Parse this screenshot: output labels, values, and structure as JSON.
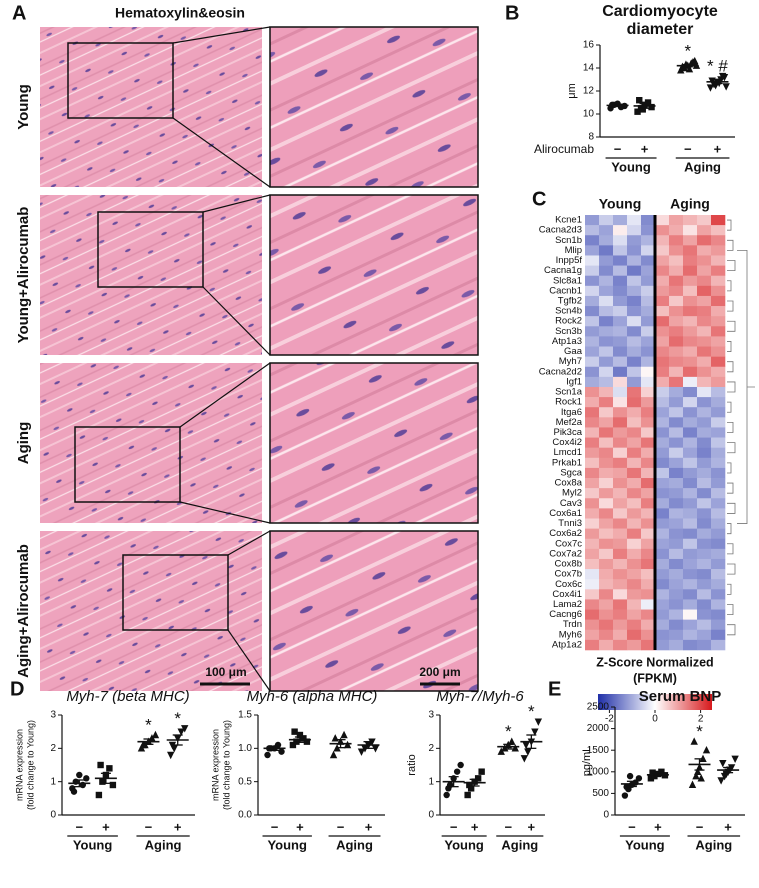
{
  "panel_labels": [
    "A",
    "B",
    "C",
    "D",
    "E"
  ],
  "histology": {
    "title": "Hematoxylin&eosin",
    "rows": [
      "Young",
      "Young+Alirocumab",
      "Aging",
      "Aging+Alirocumab"
    ],
    "scale_bars": [
      "100 μm",
      "200 μm"
    ]
  },
  "chart_data": [
    {
      "type": "dot",
      "title": [
        "Cardiomyocyte",
        "diameter"
      ],
      "ylabel": [
        "μm"
      ],
      "ylim": [
        8,
        16
      ],
      "yticks": [
        8,
        10,
        12,
        14,
        16
      ],
      "factor_label": "Alirocumab",
      "categories": [
        "−",
        "+",
        "−",
        "+"
      ],
      "groups": [
        "Young",
        "Aging"
      ],
      "points": [
        [
          10.5,
          10.8,
          10.9,
          10.6,
          10.7,
          10.8
        ],
        [
          10.2,
          10.5,
          10.8,
          11.0,
          10.6,
          11.2,
          10.4
        ],
        [
          13.8,
          14.0,
          14.2,
          14.4,
          14.6,
          14.1,
          14.3,
          13.9,
          14.5,
          14.2
        ],
        [
          12.3,
          12.6,
          12.8,
          13.0,
          13.2,
          12.9,
          12.5,
          12.7,
          13.3,
          12.4
        ]
      ],
      "means": [
        10.75,
        10.7,
        14.2,
        12.8
      ],
      "errors": [
        0.1,
        0.2,
        0.1,
        0.15
      ],
      "significance": [
        null,
        null,
        "*",
        "* #"
      ]
    },
    {
      "type": "heatmap",
      "groups": [
        "Young",
        "Aging"
      ],
      "rows": [
        "Kcne1",
        "Cacna2d3",
        "Scn1b",
        "Mlip",
        "Inpp5f",
        "Cacna1g",
        "Slc8a1",
        "Cacnb1",
        "Tgfb2",
        "Scn4b",
        "Rock2",
        "Scn3b",
        "Atp1a3",
        "Gaa",
        "Myh7",
        "Cacna2d2",
        "Igf1",
        "Scn1a",
        "Rock1",
        "Itga6",
        "Mef2a",
        "Pik3ca",
        "Cox4i2",
        "Lmcd1",
        "Prkab1",
        "Sgca",
        "Cox8a",
        "Myl2",
        "Cav3",
        "Cox6a1",
        "Tnni3",
        "Cox6a2",
        "Cox7c",
        "Cox7a2",
        "Cox8b",
        "Cox7b",
        "Cox6c",
        "Cox4i1",
        "Lama2",
        "Cacng6",
        "Trdn",
        "Myh6",
        "Atp1a2"
      ],
      "values": [
        [
          -1.2,
          -0.6,
          -1.0,
          -0.3,
          -1.4,
          0.4,
          1.0,
          0.8,
          0.6,
          2.0
        ],
        [
          -0.8,
          -1.1,
          0.2,
          -0.5,
          -1.3,
          1.2,
          0.9,
          0.3,
          1.0,
          0.7
        ],
        [
          -1.5,
          -1.0,
          -0.4,
          -1.2,
          -0.9,
          0.8,
          1.4,
          1.0,
          1.6,
          1.3
        ],
        [
          -1.1,
          -1.6,
          -0.7,
          -1.3,
          -0.5,
          0.6,
          1.2,
          1.5,
          0.9,
          1.1
        ],
        [
          -0.3,
          -1.2,
          -1.5,
          -0.9,
          -1.4,
          1.0,
          0.7,
          1.4,
          1.2,
          0.8
        ],
        [
          -0.6,
          -1.4,
          -0.8,
          -1.6,
          -1.1,
          1.3,
          0.9,
          1.6,
          1.0,
          1.4
        ],
        [
          -1.3,
          -0.9,
          -1.5,
          -0.7,
          -1.2,
          0.9,
          1.5,
          1.1,
          1.3,
          0.8
        ],
        [
          -0.5,
          -1.1,
          -1.4,
          -1.0,
          -0.6,
          1.1,
          1.3,
          0.7,
          1.7,
          1.2
        ],
        [
          -1.0,
          -0.4,
          -1.2,
          -1.5,
          -0.8,
          1.4,
          0.6,
          1.2,
          1.0,
          1.6
        ],
        [
          -1.4,
          -0.8,
          -0.6,
          -1.3,
          -1.0,
          0.7,
          1.2,
          1.5,
          1.4,
          0.9
        ],
        [
          -0.7,
          -1.5,
          -1.1,
          -0.4,
          -1.2,
          1.6,
          1.0,
          0.8,
          1.3,
          1.1
        ],
        [
          -1.2,
          -1.0,
          -0.9,
          -1.4,
          -0.6,
          1.2,
          1.4,
          1.1,
          0.8,
          1.5
        ],
        [
          -0.9,
          -1.3,
          -1.2,
          -0.8,
          -1.1,
          1.0,
          1.6,
          1.3,
          1.2,
          1.0
        ],
        [
          -1.1,
          -0.7,
          -1.4,
          -1.0,
          -1.3,
          1.3,
          1.1,
          0.9,
          1.5,
          1.2
        ],
        [
          -0.6,
          -1.2,
          -0.8,
          -1.5,
          -0.9,
          1.5,
          1.3,
          1.2,
          0.9,
          1.7
        ],
        [
          -1.3,
          -0.5,
          -1.6,
          -0.7,
          0.1,
          1.4,
          0.8,
          1.6,
          1.2,
          0.9
        ],
        [
          -1.0,
          -0.8,
          0.4,
          -1.2,
          -0.3,
          0.9,
          1.5,
          -0.2,
          0.8,
          1.1
        ],
        [
          1.2,
          0.8,
          -0.4,
          1.5,
          0.5,
          -0.6,
          -1.0,
          -1.4,
          -0.3,
          -0.8
        ],
        [
          0.9,
          1.4,
          0.3,
          1.6,
          1.1,
          -0.8,
          -1.2,
          -0.5,
          -1.3,
          -1.0
        ],
        [
          1.5,
          0.6,
          1.2,
          0.9,
          1.4,
          -1.1,
          -0.7,
          -1.3,
          -0.9,
          -1.2
        ],
        [
          1.3,
          1.0,
          1.6,
          0.7,
          1.2,
          -0.9,
          -1.4,
          -1.0,
          -1.2,
          -0.6
        ],
        [
          0.8,
          1.5,
          1.1,
          1.3,
          0.6,
          -1.3,
          -0.8,
          -1.5,
          -1.0,
          -1.1
        ],
        [
          1.4,
          0.7,
          1.3,
          1.0,
          1.5,
          -1.0,
          -1.3,
          -0.9,
          -1.4,
          -0.7
        ],
        [
          1.1,
          1.3,
          0.5,
          1.4,
          0.9,
          -1.2,
          -0.6,
          -1.1,
          -1.5,
          -1.0
        ],
        [
          0.7,
          1.2,
          1.4,
          0.8,
          1.3,
          -1.4,
          -1.1,
          -0.7,
          -1.2,
          -0.9
        ],
        [
          1.3,
          0.9,
          1.0,
          1.5,
          0.8,
          -0.7,
          -1.5,
          -1.2,
          -1.0,
          -1.3
        ],
        [
          1.0,
          0.5,
          1.2,
          0.9,
          1.6,
          -1.1,
          -1.0,
          -1.4,
          -0.8,
          -1.2
        ],
        [
          0.6,
          1.1,
          0.8,
          1.3,
          1.0,
          -1.3,
          -1.2,
          -0.9,
          -1.4,
          -0.8
        ],
        [
          1.2,
          0.4,
          1.0,
          0.7,
          1.4,
          -1.0,
          -1.4,
          -1.2,
          -0.7,
          -1.1
        ],
        [
          0.9,
          1.3,
          0.6,
          1.1,
          0.8,
          -1.5,
          -0.9,
          -1.0,
          -1.3,
          -0.8
        ],
        [
          0.5,
          1.0,
          1.3,
          0.8,
          1.2,
          -1.2,
          -1.1,
          -0.8,
          -1.4,
          -1.0
        ],
        [
          1.1,
          0.7,
          0.9,
          1.4,
          0.6,
          -0.9,
          -1.3,
          -1.4,
          -1.0,
          -1.2
        ],
        [
          0.8,
          1.2,
          1.1,
          0.5,
          1.0,
          -1.1,
          -1.2,
          -0.7,
          -1.3,
          -1.4
        ],
        [
          1.0,
          0.6,
          1.4,
          0.9,
          1.3,
          -1.3,
          -0.8,
          -1.2,
          -1.1,
          -1.0
        ],
        [
          0.7,
          1.1,
          0.8,
          1.2,
          1.5,
          -1.0,
          -1.4,
          -1.1,
          -0.9,
          -1.2
        ],
        [
          -0.3,
          0.9,
          1.2,
          1.0,
          0.7,
          -1.2,
          -1.0,
          -1.3,
          -1.4,
          -0.8
        ],
        [
          -0.2,
          0.8,
          1.0,
          1.3,
          0.9,
          -1.4,
          -1.1,
          -0.9,
          -1.2,
          -1.0
        ],
        [
          0.6,
          1.3,
          0.4,
          1.1,
          1.2,
          -0.9,
          -1.2,
          -1.4,
          -0.8,
          -1.3
        ],
        [
          1.3,
          1.0,
          1.5,
          0.8,
          -0.2,
          -1.1,
          -1.3,
          -1.0,
          -1.4,
          -0.9
        ],
        [
          1.6,
          1.2,
          1.4,
          1.0,
          1.3,
          -1.2,
          -0.9,
          0.1,
          -1.3,
          -1.4
        ],
        [
          1.2,
          1.5,
          1.1,
          1.4,
          0.9,
          -1.0,
          -1.4,
          -1.1,
          -0.8,
          -1.2
        ],
        [
          1.0,
          1.3,
          0.9,
          1.6,
          1.2,
          -1.3,
          -1.2,
          -0.9,
          -1.1,
          -1.5
        ],
        [
          1.4,
          0.9,
          1.3,
          1.1,
          1.5,
          -1.2,
          -1.0,
          -1.4,
          -1.3,
          -0.9
        ]
      ],
      "colorbar_label": [
        "Z-Score Normalized",
        "(FPKM)"
      ],
      "colorbar_lim": [
        -2.5,
        2.5
      ],
      "colorbar_ticks": [
        -2,
        0,
        2
      ],
      "colors": [
        "#1f2fa8",
        "#ffffff",
        "#d7191c"
      ]
    },
    {
      "type": "dot",
      "title": "Myh-7 (beta MHC)",
      "ylabel": [
        "mRNA expression",
        "(fold change to Young)"
      ],
      "ylim": [
        0,
        3
      ],
      "yticks": [
        0,
        1,
        2,
        3
      ],
      "categories": [
        "−",
        "+",
        "−",
        "+"
      ],
      "groups": [
        "Young",
        "Aging"
      ],
      "points": [
        [
          0.8,
          1.0,
          1.2,
          0.9,
          1.1,
          0.7
        ],
        [
          0.6,
          1.0,
          1.2,
          1.4,
          0.9,
          1.5
        ],
        [
          2.0,
          2.1,
          2.2,
          2.3,
          2.4,
          2.1
        ],
        [
          1.8,
          2.0,
          2.3,
          2.5,
          2.6,
          2.1
        ]
      ],
      "means": [
        0.95,
        1.1,
        2.2,
        2.25
      ],
      "errors": [
        0.1,
        0.15,
        0.08,
        0.15
      ],
      "significance": [
        null,
        null,
        "*",
        "*"
      ]
    },
    {
      "type": "dot",
      "title": "Myh-6 (alpha MHC)",
      "ylabel": [
        "mRNA expression",
        "(fold change to Young)"
      ],
      "ylim": [
        0,
        1.5
      ],
      "yticks": [
        {
          "value": 0,
          "label": "0.0"
        },
        0.5,
        {
          "value": 1,
          "label": "1.0"
        },
        1.5
      ],
      "categories": [
        "−",
        "+",
        "−",
        "+"
      ],
      "groups": [
        "Young",
        "Aging"
      ],
      "points": [
        [
          0.9,
          1.0,
          1.0,
          1.05,
          0.95,
          1.0
        ],
        [
          1.05,
          1.1,
          1.2,
          1.15,
          1.1,
          1.25
        ],
        [
          0.9,
          1.0,
          1.1,
          1.2,
          1.05,
          1.15
        ],
        [
          0.95,
          1.0,
          1.05,
          1.1,
          1.0
        ]
      ],
      "means": [
        1.0,
        1.13,
        1.07,
        1.05
      ],
      "errors": [
        0.03,
        0.04,
        0.06,
        0.05
      ]
    },
    {
      "type": "dot",
      "title": "Myh-7/Myh-6",
      "ylabel": [
        "ratio"
      ],
      "ylim": [
        0,
        3
      ],
      "yticks": [
        0,
        1,
        2,
        3
      ],
      "categories": [
        "−",
        "+",
        "−",
        "+"
      ],
      "groups": [
        "Young",
        "Aging"
      ],
      "points": [
        [
          0.6,
          0.9,
          1.1,
          1.3,
          1.5,
          0.8
        ],
        [
          0.6,
          0.8,
          1.0,
          1.1,
          1.3,
          0.9
        ],
        [
          1.9,
          2.0,
          2.1,
          2.2,
          2.0
        ],
        [
          1.7,
          1.9,
          2.2,
          2.5,
          2.8,
          2.1
        ]
      ],
      "means": [
        1.0,
        0.97,
        2.05,
        2.2
      ],
      "errors": [
        0.15,
        0.1,
        0.07,
        0.2
      ],
      "significance": [
        null,
        null,
        "*",
        "*"
      ]
    },
    {
      "type": "dot",
      "title": "Serum BNP",
      "ylabel": [
        "pg/mL"
      ],
      "ylim": [
        0,
        2500
      ],
      "yticks": [
        0,
        500,
        1000,
        1500,
        2000,
        2500
      ],
      "categories": [
        "−",
        "+",
        "−",
        "+"
      ],
      "groups": [
        "Young",
        "Aging"
      ],
      "points": [
        [
          450,
          600,
          700,
          750,
          850,
          650,
          900
        ],
        [
          850,
          900,
          950,
          1000,
          920,
          980
        ],
        [
          700,
          900,
          1100,
          1300,
          1500,
          1700,
          1000,
          850
        ],
        [
          800,
          900,
          1000,
          1100,
          1300,
          1200,
          950,
          1050
        ]
      ],
      "means": [
        720,
        930,
        1170,
        1040
      ],
      "errors": [
        60,
        25,
        130,
        60
      ],
      "significance": [
        null,
        null,
        "*",
        null
      ]
    }
  ]
}
